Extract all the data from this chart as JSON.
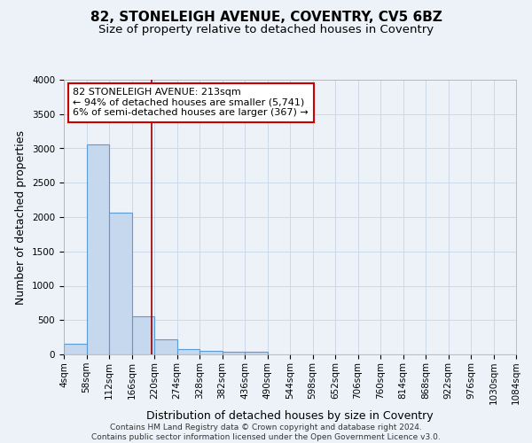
{
  "title": "82, STONELEIGH AVENUE, COVENTRY, CV5 6BZ",
  "subtitle": "Size of property relative to detached houses in Coventry",
  "xlabel": "Distribution of detached houses by size in Coventry",
  "ylabel": "Number of detached properties",
  "bin_edges": [
    4,
    58,
    112,
    166,
    220,
    274,
    328,
    382,
    436,
    490,
    544,
    598,
    652,
    706,
    760,
    814,
    868,
    922,
    976,
    1030,
    1084
  ],
  "bar_heights": [
    150,
    3060,
    2060,
    560,
    215,
    75,
    55,
    45,
    45,
    0,
    0,
    0,
    0,
    0,
    0,
    0,
    0,
    0,
    0,
    0
  ],
  "bar_color": "#c5d8ee",
  "bar_edge_color": "#5b9bd5",
  "bar_edge_width": 0.8,
  "grid_color": "#ccd8e8",
  "bg_color": "#edf2f9",
  "red_line_x": 213,
  "red_line_color": "#990000",
  "annotation_text": "82 STONELEIGH AVENUE: 213sqm\n← 94% of detached houses are smaller (5,741)\n6% of semi-detached houses are larger (367) →",
  "annotation_box_color": "white",
  "annotation_box_edge_color": "#cc0000",
  "ylim": [
    0,
    4000
  ],
  "yticks": [
    0,
    500,
    1000,
    1500,
    2000,
    2500,
    3000,
    3500,
    4000
  ],
  "footer_text": "Contains HM Land Registry data © Crown copyright and database right 2024.\nContains public sector information licensed under the Open Government Licence v3.0.",
  "title_fontsize": 11,
  "subtitle_fontsize": 9.5,
  "xlabel_fontsize": 9,
  "ylabel_fontsize": 9,
  "tick_fontsize": 7.5,
  "annotation_fontsize": 8,
  "footer_fontsize": 6.5
}
